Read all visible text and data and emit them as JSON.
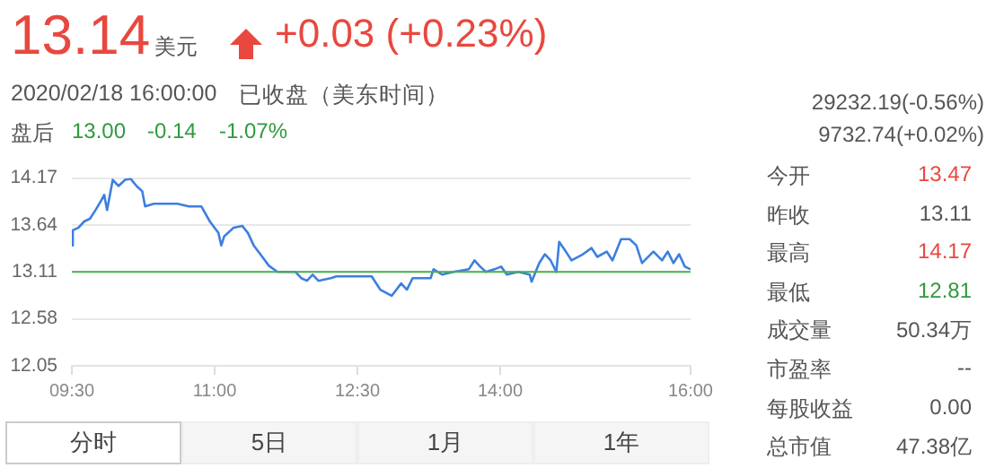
{
  "chart_data": [
    {
      "type": "other",
      "annotations": [
        "13.14",
        "美元",
        "+0.03 (+0.23%)",
        "2020/02/18 16:00:00",
        "已收盘（美东时间）",
        "盘后",
        "13.00",
        "-0.14",
        "-1.07%",
        "29232.19(-0.56%)",
        "9732.74(+0.02%)"
      ]
    },
    {
      "type": "line",
      "color": "#3d7fe0",
      "x": [
        9.5,
        9.51,
        9.57,
        9.63,
        9.69,
        9.75,
        9.81,
        9.84,
        9.87,
        9.93,
        9.99,
        10.06,
        10.12,
        10.18,
        10.24,
        10.27,
        10.36,
        10.61,
        10.73,
        10.86,
        10.95,
        11.04,
        11.07,
        11.1,
        11.2,
        11.29,
        11.35,
        11.41,
        11.48,
        11.57,
        11.66,
        11.85,
        11.91,
        11.97,
        12.03,
        12.09,
        12.22,
        12.28,
        12.46,
        12.65,
        12.74,
        12.86,
        12.96,
        13.02,
        13.08,
        13.27,
        13.3,
        13.39,
        13.51,
        13.67,
        13.73,
        13.79,
        13.85,
        13.94,
        14.01,
        14.07,
        14.19,
        14.31,
        14.33,
        14.41,
        14.47,
        14.53,
        14.59,
        14.62,
        14.69,
        14.75,
        14.87,
        14.96,
        15.02,
        15.12,
        15.18,
        15.27,
        15.36,
        15.43,
        15.49,
        15.61,
        15.7,
        15.76,
        15.82,
        15.88,
        15.94,
        16.0
      ],
      "values": [
        13.41,
        13.58,
        13.61,
        13.68,
        13.71,
        13.81,
        13.92,
        13.98,
        13.81,
        14.15,
        14.08,
        14.15,
        14.16,
        14.08,
        14.02,
        13.85,
        13.88,
        13.88,
        13.85,
        13.85,
        13.68,
        13.55,
        13.41,
        13.51,
        13.61,
        13.63,
        13.55,
        13.41,
        13.31,
        13.18,
        13.11,
        13.11,
        13.04,
        13.01,
        13.08,
        13.01,
        13.04,
        13.06,
        13.06,
        13.06,
        12.91,
        12.84,
        12.98,
        12.91,
        13.04,
        13.04,
        13.14,
        13.08,
        13.11,
        13.14,
        13.24,
        13.17,
        13.11,
        13.14,
        13.17,
        13.08,
        13.11,
        13.08,
        13.0,
        13.21,
        13.31,
        13.24,
        13.11,
        13.45,
        13.34,
        13.24,
        13.31,
        13.38,
        13.28,
        13.34,
        13.24,
        13.48,
        13.48,
        13.41,
        13.21,
        13.34,
        13.24,
        13.34,
        13.21,
        13.31,
        13.17,
        13.14
      ],
      "xlim": [
        9.5,
        16
      ],
      "xticks": [
        {
          "value": 9.5,
          "label": "09:30"
        },
        {
          "value": 11,
          "label": "11:00"
        },
        {
          "value": 12.5,
          "label": "12:30"
        },
        {
          "value": 14,
          "label": "14:00"
        },
        {
          "value": 16,
          "label": "16:00"
        }
      ],
      "ylim": [
        12.05,
        14.17
      ],
      "yticks": [
        12.05,
        12.58,
        13.11,
        13.64,
        14.17
      ],
      "grid": "y",
      "ref_lines": [
        {
          "axis": "y",
          "value": 13.11,
          "color": "#4caf50"
        }
      ]
    },
    {
      "type": "other",
      "annotations": [
        "今开",
        "13.47",
        "昨收",
        "13.11",
        "最高",
        "14.17",
        "最低",
        "12.81",
        "成交量",
        "50.34万",
        "市盈率",
        "--",
        "每股收益",
        "0.00",
        "总市值",
        "47.38亿",
        "分时",
        "5日",
        "1月",
        "1年"
      ]
    }
  ]
}
